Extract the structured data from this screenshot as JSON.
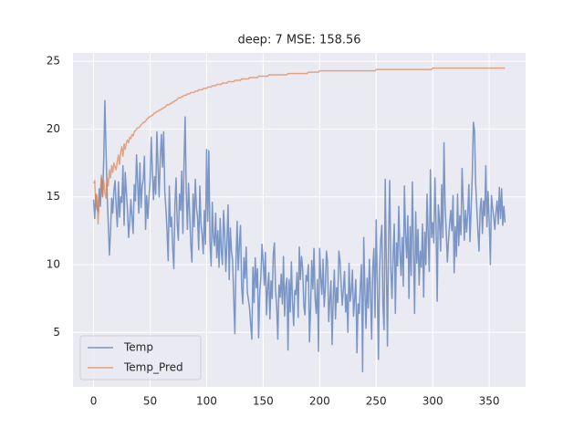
{
  "chart_data": {
    "type": "line",
    "title": "deep: 7 MSE: 158.56",
    "x": [
      0,
      1,
      2,
      3,
      4,
      5,
      6,
      7,
      8,
      9,
      10,
      11,
      12,
      13,
      14,
      15,
      16,
      17,
      18,
      19,
      20,
      21,
      22,
      23,
      24,
      25,
      26,
      27,
      28,
      29,
      30,
      31,
      32,
      33,
      34,
      35,
      36,
      37,
      38,
      39,
      40,
      41,
      42,
      43,
      44,
      45,
      46,
      47,
      48,
      49,
      50,
      51,
      52,
      53,
      54,
      55,
      56,
      57,
      58,
      59,
      60,
      61,
      62,
      63,
      64,
      65,
      66,
      67,
      68,
      69,
      70,
      71,
      72,
      73,
      74,
      75,
      76,
      77,
      78,
      79,
      80,
      81,
      82,
      83,
      84,
      85,
      86,
      87,
      88,
      89,
      90,
      91,
      92,
      93,
      94,
      95,
      96,
      97,
      98,
      99,
      100,
      101,
      102,
      103,
      104,
      105,
      106,
      107,
      108,
      109,
      110,
      111,
      112,
      113,
      114,
      115,
      116,
      117,
      118,
      119,
      120,
      121,
      122,
      123,
      124,
      125,
      126,
      127,
      128,
      129,
      130,
      131,
      132,
      133,
      134,
      135,
      136,
      137,
      138,
      139,
      140,
      141,
      142,
      143,
      144,
      145,
      146,
      147,
      148,
      149,
      150,
      151,
      152,
      153,
      154,
      155,
      156,
      157,
      158,
      159,
      160,
      161,
      162,
      163,
      164,
      165,
      166,
      167,
      168,
      169,
      170,
      171,
      172,
      173,
      174,
      175,
      176,
      177,
      178,
      179,
      180,
      181,
      182,
      183,
      184,
      185,
      186,
      187,
      188,
      189,
      190,
      191,
      192,
      193,
      194,
      195,
      196,
      197,
      198,
      199,
      200,
      201,
      202,
      203,
      204,
      205,
      206,
      207,
      208,
      209,
      210,
      211,
      212,
      213,
      214,
      215,
      216,
      217,
      218,
      219,
      220,
      221,
      222,
      223,
      224,
      225,
      226,
      227,
      228,
      229,
      230,
      231,
      232,
      233,
      234,
      235,
      236,
      237,
      238,
      239,
      240,
      241,
      242,
      243,
      244,
      245,
      246,
      247,
      248,
      249,
      250,
      251,
      252,
      253,
      254,
      255,
      256,
      257,
      258,
      259,
      260,
      261,
      262,
      263,
      264,
      265,
      266,
      267,
      268,
      269,
      270,
      271,
      272,
      273,
      274,
      275,
      276,
      277,
      278,
      279,
      280,
      281,
      282,
      283,
      284,
      285,
      286,
      287,
      288,
      289,
      290,
      291,
      292,
      293,
      294,
      295,
      296,
      297,
      298,
      299,
      300,
      301,
      302,
      303,
      304,
      305,
      306,
      307,
      308,
      309,
      310,
      311,
      312,
      313,
      314,
      315,
      316,
      317,
      318,
      319,
      320,
      321,
      322,
      323,
      324,
      325,
      326,
      327,
      328,
      329,
      330,
      331,
      332,
      333,
      334,
      335,
      336,
      337,
      338,
      339,
      340,
      341,
      342,
      343,
      344,
      345,
      346,
      347,
      348,
      349,
      350,
      351,
      352,
      353,
      354,
      355,
      356,
      357,
      358,
      359,
      360,
      361,
      362,
      363,
      364
    ],
    "series": [
      {
        "name": "Temp",
        "color": "#4c72b0",
        "values": [
          14.8,
          13.4,
          15.2,
          14.1,
          13.9,
          15.6,
          14.3,
          16.4,
          15.0,
          17.8,
          22.1,
          18.5,
          15.2,
          13.0,
          10.7,
          12.4,
          14.9,
          13.8,
          15.5,
          16.2,
          14.2,
          12.8,
          16.1,
          13.5,
          15.0,
          14.6,
          17.3,
          12.9,
          16.8,
          15.4,
          14.1,
          12.0,
          13.2,
          14.8,
          13.5,
          12.3,
          15.9,
          14.7,
          18.1,
          16.0,
          13.8,
          17.5,
          14.2,
          15.8,
          16.3,
          18.0,
          12.6,
          15.1,
          13.4,
          14.9,
          16.2,
          19.4,
          17.0,
          14.8,
          16.5,
          15.2,
          19.8,
          17.3,
          15.0,
          17.9,
          19.6,
          17.2,
          19.8,
          15.4,
          14.1,
          12.5,
          10.3,
          15.8,
          12.8,
          13.5,
          11.2,
          9.7,
          14.5,
          16.4,
          13.0,
          11.8,
          15.2,
          14.0,
          16.9,
          12.3,
          17.5,
          20.9,
          15.3,
          12.6,
          16.0,
          13.8,
          11.5,
          10.2,
          15.2,
          12.8,
          16.3,
          14.2,
          13.5,
          11.1,
          15.8,
          13.0,
          12.2,
          10.8,
          14.0,
          11.5,
          18.5,
          13.2,
          18.4,
          11.7,
          9.9,
          14.6,
          12.0,
          11.4,
          13.8,
          10.5,
          12.5,
          9.8,
          13.4,
          11.0,
          10.0,
          14.0,
          12.2,
          9.5,
          11.8,
          14.4,
          8.9,
          12.7,
          11.0,
          10.3,
          7.5,
          4.9,
          10.2,
          13.2,
          9.6,
          11.5,
          12.9,
          8.4,
          7.1,
          10.5,
          9.0,
          11.3,
          8.0,
          7.4,
          6.8,
          5.6,
          4.5,
          9.8,
          7.2,
          10.5,
          8.3,
          9.7,
          4.6,
          7.9,
          9.1,
          11.5,
          10.3,
          8.5,
          10.9,
          6.3,
          8.2,
          9.4,
          6.0,
          8.8,
          7.5,
          10.8,
          11.6,
          8.1,
          6.9,
          4.5,
          8.5,
          7.6,
          9.3,
          7.1,
          10.6,
          6.2,
          8.4,
          9.0,
          3.7,
          8.9,
          6.5,
          10.2,
          7.3,
          5.5,
          8.1,
          7.8,
          9.4,
          6.1,
          11.3,
          8.9,
          10.6,
          9.7,
          7.0,
          6.3,
          9.2,
          8.8,
          10.0,
          4.3,
          6.8,
          10.3,
          8.2,
          11.2,
          7.5,
          6.4,
          8.9,
          3.6,
          11.2,
          9.0,
          7.8,
          10.4,
          6.9,
          8.2,
          11.0,
          10.2,
          5.8,
          7.4,
          8.8,
          4.1,
          7.5,
          9.6,
          6.0,
          8.3,
          7.2,
          11.0,
          10.3,
          8.6,
          7.0,
          8.2,
          9.5,
          6.5,
          7.8,
          5.0,
          10.1,
          7.3,
          8.0,
          9.6,
          6.2,
          7.5,
          8.9,
          3.5,
          7.1,
          6.4,
          8.5,
          10.0,
          2.1,
          12.0,
          8.1,
          5.3,
          9.0,
          6.8,
          10.4,
          7.9,
          4.5,
          9.8,
          11.2,
          6.1,
          13.3,
          8.6,
          3.0,
          9.5,
          11.8,
          12.9,
          7.0,
          5.2,
          16.3,
          10.1,
          4.0,
          12.0,
          16.2,
          9.6,
          7.5,
          10.8,
          13.0,
          6.4,
          11.6,
          9.9,
          14.3,
          11.0,
          9.2,
          12.0,
          8.4,
          15.8,
          12.2,
          10.5,
          13.6,
          7.5,
          12.8,
          9.2,
          16.1,
          11.3,
          6.4,
          13.9,
          10.1,
          12.6,
          8.5,
          11.0,
          9.8,
          13.0,
          7.6,
          12.4,
          10.0,
          15.2,
          12.2,
          9.5,
          17.0,
          12.0,
          13.1,
          11.6,
          16.4,
          12.9,
          7.3,
          14.4,
          13.3,
          11.0,
          15.9,
          12.0,
          19.0,
          14.3,
          12.4,
          10.2,
          11.8,
          13.0,
          14.0,
          12.5,
          15.1,
          9.4,
          12.8,
          10.6,
          15.2,
          11.4,
          13.6,
          12.2,
          17.1,
          14.5,
          11.8,
          14.0,
          12.4,
          13.8,
          15.9,
          11.7,
          14.1,
          16.5,
          20.5,
          19.9,
          16.0,
          14.2,
          12.5,
          11.0,
          14.1,
          14.9,
          12.3,
          14.7,
          13.6,
          17.3,
          12.8,
          15.4,
          13.2,
          10.0,
          15.1,
          14.2,
          13.5,
          12.6,
          13.9,
          14.7,
          13.0,
          15.7,
          13.4,
          15.6,
          12.9,
          14.3,
          13.1
        ]
      },
      {
        "name": "Temp_Pred",
        "color": "#dd8452",
        "values": [
          16.0,
          16.2,
          14.3,
          15.1,
          13.0,
          14.8,
          15.5,
          16.6,
          15.0,
          16.2,
          15.3,
          14.9,
          16.4,
          15.8,
          17.0,
          16.4,
          17.3,
          16.8,
          17.5,
          17.2,
          17.0,
          17.6,
          18.1,
          17.4,
          18.3,
          18.7,
          18.0,
          18.9,
          18.5,
          19.0,
          19.2,
          19.0,
          19.4,
          19.3,
          19.6,
          19.5,
          19.8,
          19.9,
          20.0,
          20.1,
          20.1,
          20.2,
          20.3,
          20.4,
          20.5,
          20.5,
          20.6,
          20.7,
          20.8,
          20.9,
          20.9,
          21.0,
          21.0,
          21.1,
          21.2,
          21.2,
          21.3,
          21.3,
          21.4,
          21.4,
          21.5,
          21.5,
          21.6,
          21.6,
          21.7,
          21.8,
          21.8,
          21.8,
          21.9,
          21.9,
          22.0,
          22.0,
          22.1,
          22.1,
          22.2,
          22.3,
          22.3,
          22.3,
          22.4,
          22.4,
          22.5,
          22.5,
          22.5,
          22.6,
          22.6,
          22.6,
          22.7,
          22.7,
          22.7,
          22.7,
          22.8,
          22.8,
          22.8,
          22.9,
          22.9,
          22.9,
          22.9,
          23.0,
          23.0,
          23.0,
          23.0,
          23.1,
          23.1,
          23.1,
          23.1,
          23.2,
          23.2,
          23.2,
          23.2,
          23.3,
          23.3,
          23.3,
          23.3,
          23.3,
          23.4,
          23.4,
          23.4,
          23.4,
          23.4,
          23.5,
          23.5,
          23.5,
          23.5,
          23.5,
          23.5,
          23.6,
          23.6,
          23.6,
          23.6,
          23.6,
          23.6,
          23.7,
          23.7,
          23.7,
          23.7,
          23.7,
          23.7,
          23.7,
          23.8,
          23.8,
          23.8,
          23.8,
          23.8,
          23.8,
          23.8,
          23.8,
          23.9,
          23.9,
          23.9,
          23.9,
          23.9,
          23.9,
          23.9,
          23.9,
          23.9,
          24.0,
          24.0,
          24.0,
          24.0,
          24.0,
          24.0,
          24.0,
          24.0,
          24.0,
          24.0,
          24.0,
          24.0,
          24.0,
          24.0,
          24.0,
          24.0,
          24.0,
          24.1,
          24.1,
          24.1,
          24.1,
          24.1,
          24.1,
          24.1,
          24.1,
          24.1,
          24.1,
          24.1,
          24.1,
          24.1,
          24.1,
          24.1,
          24.1,
          24.1,
          24.1,
          24.2,
          24.2,
          24.2,
          24.2,
          24.2,
          24.2,
          24.2,
          24.2,
          24.2,
          24.2,
          24.3,
          24.3,
          24.3,
          24.3,
          24.3,
          24.3,
          24.3,
          24.3,
          24.3,
          24.3,
          24.3,
          24.3,
          24.3,
          24.3,
          24.3,
          24.3,
          24.3,
          24.3,
          24.3,
          24.3,
          24.3,
          24.3,
          24.3,
          24.3,
          24.3,
          24.3,
          24.3,
          24.3,
          24.3,
          24.3,
          24.3,
          24.3,
          24.3,
          24.3,
          24.3,
          24.3,
          24.3,
          24.3,
          24.3,
          24.3,
          24.3,
          24.3,
          24.3,
          24.3,
          24.3,
          24.3,
          24.3,
          24.3,
          24.3,
          24.3,
          24.4,
          24.4,
          24.4,
          24.4,
          24.4,
          24.4,
          24.4,
          24.4,
          24.4,
          24.4,
          24.4,
          24.4,
          24.4,
          24.4,
          24.4,
          24.4,
          24.4,
          24.4,
          24.4,
          24.4,
          24.4,
          24.4,
          24.4,
          24.4,
          24.4,
          24.4,
          24.4,
          24.4,
          24.4,
          24.4,
          24.4,
          24.4,
          24.4,
          24.4,
          24.4,
          24.4,
          24.4,
          24.4,
          24.4,
          24.4,
          24.4,
          24.4,
          24.4,
          24.4,
          24.4,
          24.4,
          24.4,
          24.4,
          24.4,
          24.4,
          24.5,
          24.5,
          24.5,
          24.5,
          24.5,
          24.5,
          24.5,
          24.5,
          24.5,
          24.5,
          24.5,
          24.5,
          24.5,
          24.5,
          24.5,
          24.5,
          24.5,
          24.5,
          24.5,
          24.5,
          24.5,
          24.5,
          24.5,
          24.5,
          24.5,
          24.5,
          24.5,
          24.5,
          24.5,
          24.5,
          24.5,
          24.5,
          24.5,
          24.5,
          24.5,
          24.5,
          24.5,
          24.5,
          24.5,
          24.5,
          24.5,
          24.5,
          24.5,
          24.5,
          24.5,
          24.5,
          24.5,
          24.5,
          24.5,
          24.5,
          24.5,
          24.5,
          24.5,
          24.5,
          24.5,
          24.5,
          24.5,
          24.5,
          24.5,
          24.5,
          24.5,
          24.5,
          24.5,
          24.5,
          24.5
        ]
      }
    ],
    "xlim": [
      -18.2,
      382.2
    ],
    "xticks": [
      0,
      50,
      100,
      150,
      200,
      250,
      300,
      350
    ],
    "ylim": [
      0.98,
      25.62
    ],
    "yticks": [
      5,
      10,
      15,
      20,
      25
    ],
    "grid": true,
    "legend": "lower left"
  }
}
